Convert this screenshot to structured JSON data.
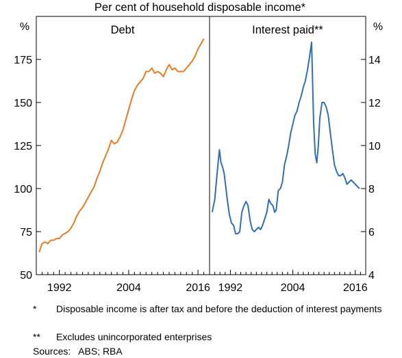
{
  "chart_data": {
    "type": "line",
    "title": "Per cent of household disposable income*",
    "grid": false,
    "panels": [
      {
        "title": "Debt",
        "y_unit": "%",
        "ylim": [
          50,
          200
        ],
        "yticks": [
          50,
          75,
          100,
          125,
          150,
          175
        ],
        "xlim": [
          1988,
          2018
        ],
        "xticks": [
          1992,
          2004,
          2016
        ],
        "color": "#e87a23",
        "series": [
          {
            "x": [
              1988.5,
              1989.0,
              1989.5,
              1990.0,
              1990.5,
              1991.0,
              1991.5,
              1992.0,
              1992.5,
              1993.0,
              1993.5,
              1994.0,
              1994.5,
              1995.0,
              1995.5,
              1996.0,
              1996.5,
              1997.0,
              1997.5,
              1998.0,
              1998.5,
              1999.0,
              1999.5,
              2000.0,
              2000.5,
              2001.0,
              2001.5,
              2002.0,
              2002.5,
              2003.0,
              2003.5,
              2004.0,
              2004.5,
              2005.0,
              2005.5,
              2006.0,
              2006.5,
              2007.0,
              2007.5,
              2008.0,
              2008.5,
              2009.0,
              2009.5,
              2010.0,
              2010.5,
              2011.0,
              2011.5,
              2012.0,
              2012.5,
              2013.0,
              2013.5,
              2014.0,
              2014.5,
              2015.0,
              2015.5,
              2016.0,
              2016.5,
              2017.0
            ],
            "y": [
              63,
              68,
              69,
              68,
              70,
              70,
              71,
              71,
              73,
              74,
              75,
              77,
              80,
              84,
              87,
              89,
              92,
              95,
              98,
              101,
              106,
              110,
              115,
              119,
              123,
              128,
              126,
              127,
              130,
              134,
              140,
              146,
              152,
              157,
              160,
              162,
              164,
              168,
              168,
              170,
              167,
              168,
              167,
              165,
              169,
              172,
              169,
              170,
              168,
              168,
              168,
              170,
              172,
              174,
              177,
              181,
              184,
              187
            ]
          }
        ]
      },
      {
        "title": "Interest paid**",
        "y_unit": "%",
        "ylim": [
          4,
          16
        ],
        "yticks": [
          4,
          6,
          8,
          10,
          12,
          14
        ],
        "xlim": [
          1988,
          2018
        ],
        "xticks": [
          1992,
          2004,
          2016
        ],
        "color": "#2f6db5",
        "series": [
          {
            "x": [
              1988.5,
              1989.0,
              1989.3,
              1989.6,
              1989.9,
              1990.2,
              1990.5,
              1990.8,
              1991.1,
              1991.4,
              1991.8,
              1992.2,
              1992.6,
              1993.0,
              1993.4,
              1993.8,
              1994.2,
              1994.6,
              1995.0,
              1995.4,
              1995.8,
              1996.2,
              1996.6,
              1997.0,
              1997.4,
              1997.8,
              1998.2,
              1998.6,
              1999.0,
              1999.4,
              1999.8,
              2000.2,
              2000.5,
              2000.8,
              2001.2,
              2001.6,
              2002.0,
              2002.4,
              2002.8,
              2003.2,
              2003.6,
              2004.0,
              2004.4,
              2004.8,
              2005.2,
              2005.6,
              2006.0,
              2006.4,
              2006.8,
              2007.2,
              2007.6,
              2008.0,
              2008.3,
              2008.6,
              2008.9,
              2009.2,
              2009.6,
              2010.0,
              2010.4,
              2010.8,
              2011.2,
              2011.6,
              2012.0,
              2012.4,
              2012.8,
              2013.2,
              2013.6,
              2014.0,
              2014.4,
              2014.8,
              2015.2,
              2015.6,
              2016.0,
              2016.4,
              2016.8
            ],
            "y": [
              6.9,
              7.5,
              8.3,
              9.1,
              9.8,
              9.2,
              9.0,
              8.7,
              8.1,
              7.5,
              6.8,
              6.4,
              6.3,
              5.9,
              5.9,
              6.0,
              6.9,
              7.2,
              7.4,
              7.2,
              6.5,
              6.1,
              6.0,
              6.1,
              6.2,
              6.1,
              6.3,
              6.6,
              6.9,
              7.5,
              7.3,
              7.2,
              6.9,
              7.0,
              7.9,
              8.0,
              8.3,
              9.1,
              9.5,
              10.0,
              10.6,
              11.0,
              11.4,
              11.6,
              12.0,
              12.3,
              12.7,
              13.0,
              13.5,
              14.1,
              14.8,
              11.0,
              9.6,
              9.2,
              10.0,
              11.3,
              12.0,
              12.0,
              11.8,
              11.4,
              10.6,
              9.8,
              9.1,
              8.8,
              8.6,
              8.6,
              8.7,
              8.5,
              8.2,
              8.3,
              8.4,
              8.3,
              8.2,
              8.1,
              8.0
            ]
          }
        ]
      }
    ],
    "footnotes": [
      {
        "mark": "*",
        "text": "Disposable income is after tax and before the deduction of interest payments"
      },
      {
        "mark": "**",
        "text": "Excludes unincorporated enterprises"
      }
    ],
    "sources": "Sources:   ABS; RBA"
  }
}
